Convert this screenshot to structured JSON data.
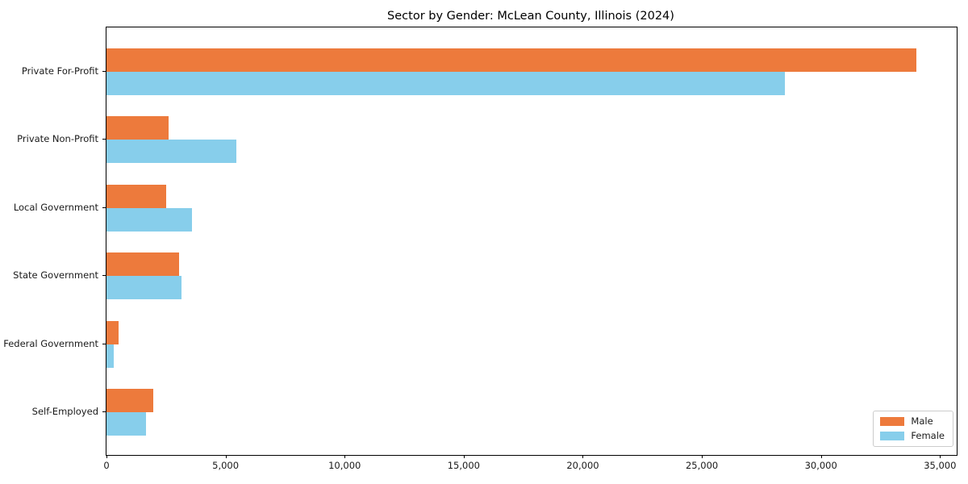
{
  "chart_data": {
    "type": "bar",
    "orientation": "horizontal",
    "title": "Sector by Gender: McLean County, Illinois (2024)",
    "categories": [
      "Private For-Profit",
      "Private Non-Profit",
      "Local Government",
      "State Government",
      "Federal Government",
      "Self-Employed"
    ],
    "series": [
      {
        "name": "Male",
        "color": "#ed7a3c",
        "values": [
          34000,
          2600,
          2500,
          3050,
          500,
          1950
        ]
      },
      {
        "name": "Female",
        "color": "#87ceeb",
        "values": [
          28500,
          5450,
          3600,
          3150,
          300,
          1650
        ]
      }
    ],
    "xlabel": "",
    "ylabel": "",
    "xlim": [
      0,
      35700
    ],
    "xticks": [
      {
        "value": 0,
        "label": "0"
      },
      {
        "value": 5000,
        "label": "5,000"
      },
      {
        "value": 10000,
        "label": "10,000"
      },
      {
        "value": 15000,
        "label": "15,000"
      },
      {
        "value": 20000,
        "label": "20,000"
      },
      {
        "value": 25000,
        "label": "25,000"
      },
      {
        "value": 30000,
        "label": "30,000"
      },
      {
        "value": 35000,
        "label": "35,000"
      }
    ],
    "grid": false,
    "legend": {
      "position": "lower right",
      "entries": [
        "Male",
        "Female"
      ]
    },
    "colors": {
      "background": "#ffffff",
      "axis": "#000000",
      "text": "#1a1a1a"
    }
  }
}
